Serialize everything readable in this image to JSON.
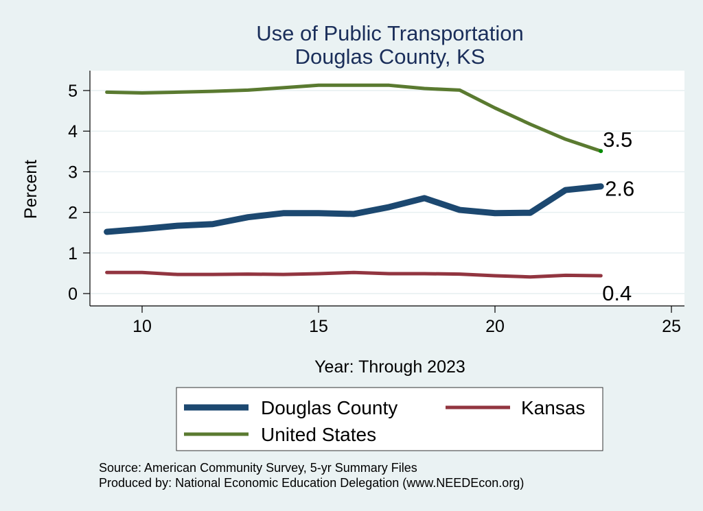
{
  "chart_data": {
    "type": "line",
    "title": "Use of Public Transportation",
    "subtitle": "Douglas County, KS",
    "xlabel": "Year: Through 2023",
    "ylabel": "Percent",
    "xlim": [
      9,
      25
    ],
    "ylim": [
      0,
      5
    ],
    "xticks": [
      10,
      15,
      20,
      25
    ],
    "yticks": [
      0,
      1,
      2,
      3,
      4,
      5
    ],
    "grid": true,
    "legend_position": "bottom",
    "x": [
      9,
      10,
      11,
      12,
      13,
      14,
      15,
      16,
      17,
      18,
      19,
      20,
      21,
      22,
      23
    ],
    "series": [
      {
        "name": "Douglas County",
        "color": "#1c4870",
        "values": [
          1.52,
          1.59,
          1.67,
          1.71,
          1.88,
          1.98,
          1.98,
          1.96,
          2.13,
          2.35,
          2.06,
          1.98,
          1.99,
          2.55,
          2.64
        ],
        "end_label": "2.6"
      },
      {
        "name": "Kansas",
        "color": "#923540",
        "values": [
          0.52,
          0.52,
          0.47,
          0.47,
          0.48,
          0.47,
          0.49,
          0.52,
          0.49,
          0.49,
          0.48,
          0.44,
          0.41,
          0.45,
          0.44
        ],
        "end_label": "0.4"
      },
      {
        "name": "United States",
        "color": "#5a7a30",
        "values": [
          4.96,
          4.94,
          4.96,
          4.98,
          5.01,
          5.07,
          5.13,
          5.13,
          5.13,
          5.05,
          5.01,
          4.57,
          4.17,
          3.8,
          3.51
        ],
        "end_label": "3.5"
      }
    ],
    "notes": [
      "Source: American Community Survey, 5-yr Summary Files",
      "Produced by: National Economic Education Delegation (www.NEEDEcon.org)"
    ]
  }
}
